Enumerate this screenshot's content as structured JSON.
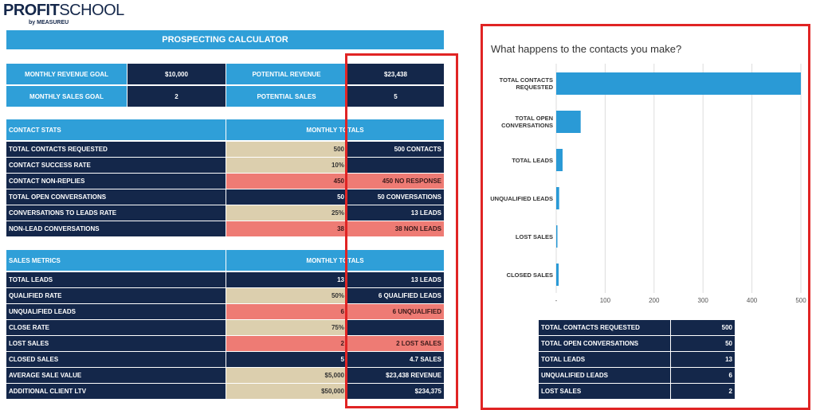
{
  "logo": {
    "name": [
      "PROFIT",
      "SCHOOL"
    ],
    "byline": "by MEASUREU"
  },
  "calculator": {
    "title": "PROSPECTING CALCULATOR",
    "goals": [
      [
        "MONTHLY REVENUE GOAL",
        "$10,000",
        "POTENTIAL REVENUE",
        "$23,438"
      ],
      [
        "MONTHLY SALES GOAL",
        2,
        "POTENTIAL SALES",
        5
      ]
    ],
    "sections": [
      {
        "header": [
          "CONTACT STATS",
          "MONTHLY TOTALS"
        ],
        "rows": [
          [
            "TOTAL CONTACTS REQUESTED",
            500,
            "500 CONTACTS"
          ],
          [
            "CONTACT SUCCESS RATE",
            "10%",
            null
          ],
          [
            "CONTACT NON-REPLIES",
            450,
            "450 NO RESPONSE"
          ],
          [
            "TOTAL OPEN CONVERSATIONS",
            50,
            "50 CONVERSATIONS"
          ],
          [
            "CONVERSATIONS TO LEADS RATE",
            "25%",
            "13 LEADS"
          ],
          [
            "NON-LEAD CONVERSATIONS",
            38,
            "38 NON LEADS"
          ]
        ]
      },
      {
        "header": [
          "SALES METRICS",
          "MONTHLY TOTALS"
        ],
        "rows": [
          [
            "TOTAL LEADS",
            13,
            "13 LEADS"
          ],
          [
            "QUALIFIED RATE",
            "50%",
            "6 QUALIFIED LEADS"
          ],
          [
            "UNQUALIFIED LEADS",
            6,
            "6 UNQUALIFIED"
          ],
          [
            "CLOSE RATE",
            "75%",
            null
          ],
          [
            "LOST SALES",
            2,
            "2 LOST SALES"
          ],
          [
            "CLOSED SALES",
            5,
            "4.7 SALES"
          ],
          [
            "AVERAGE SALE VALUE",
            "$5,000",
            "$23,438 REVENUE"
          ],
          [
            "ADDITIONAL CLIENT LTV",
            "$50,000",
            "$234,375"
          ]
        ]
      }
    ]
  },
  "chart_data": {
    "type": "bar",
    "orientation": "horizontal",
    "title": "What happens to the contacts you make?",
    "categories": [
      "TOTAL CONTACTS REQUESTED",
      "TOTAL OPEN CONVERSATIONS",
      "TOTAL LEADS",
      "UNQUALIFIED LEADS",
      "LOST SALES",
      "CLOSED SALES"
    ],
    "values": [
      500,
      50,
      13,
      6,
      2,
      5
    ],
    "color": "#2a9ad6",
    "xlim": [
      0,
      500
    ],
    "xticks": [
      {
        "value": 0,
        "label": "-"
      },
      100,
      200,
      300,
      400,
      500
    ],
    "grid": true
  },
  "summary_table": {
    "rows": [
      [
        "TOTAL CONTACTS REQUESTED",
        500
      ],
      [
        "TOTAL OPEN CONVERSATIONS",
        50
      ],
      [
        "TOTAL LEADS",
        13
      ],
      [
        "UNQUALIFIED LEADS",
        6
      ],
      [
        "LOST SALES",
        2
      ]
    ]
  }
}
